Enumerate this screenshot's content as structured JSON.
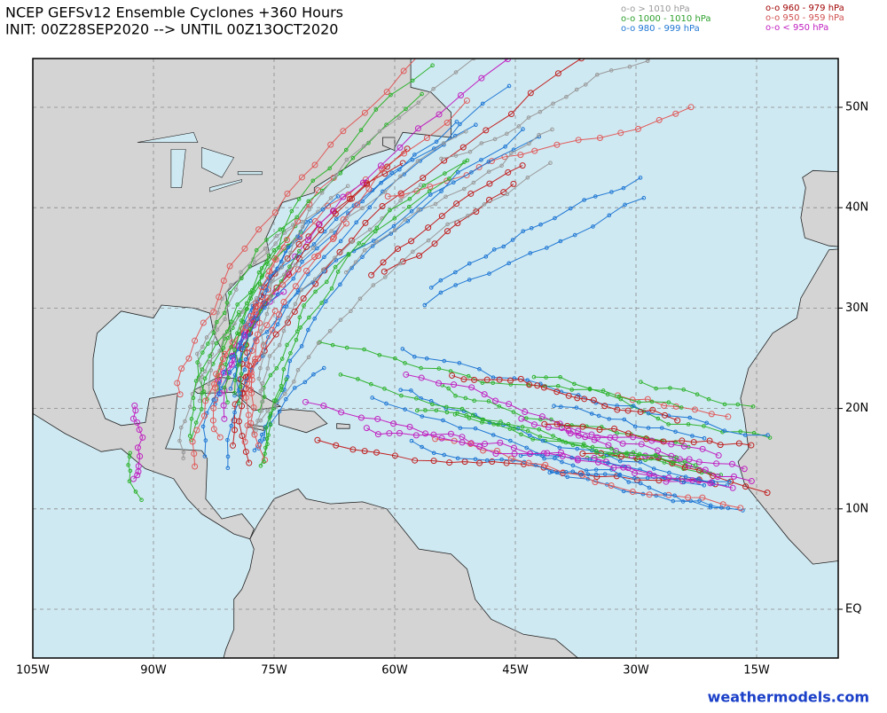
{
  "header": {
    "title": "NCEP GEFSv12 Ensemble Cyclones +360 Hours",
    "subtitle": "INIT: 00Z28SEP2020 --> UNTIL 00Z13OCT2020"
  },
  "legend": {
    "left": [
      "o-o > 1010 hPa",
      "o-o 1000 - 1010 hPa",
      "o-o 980 - 999 hPa"
    ],
    "right": [
      "o-o 960 - 979 hPa",
      "o-o 950 - 959 hPa",
      "o-o < 950 hPa"
    ]
  },
  "lon_labels": [
    "105W",
    "90W",
    "75W",
    "60W",
    "45W",
    "30W",
    "15W"
  ],
  "lat_labels": [
    "EQ",
    "10N",
    "20N",
    "30N",
    "40N",
    "50N"
  ],
  "footer": "weathermodels.com"
}
